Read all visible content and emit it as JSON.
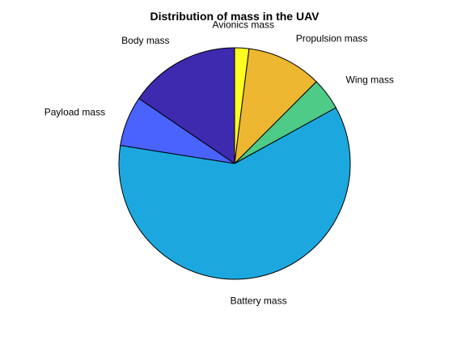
{
  "chart_data": {
    "type": "pie",
    "title": "Distribution of mass in the UAV",
    "start_angle_deg": 90,
    "direction": "clockwise",
    "slices": [
      {
        "label": "Avionics mass",
        "value": 2,
        "color": "#FFFF21"
      },
      {
        "label": "Propulsion mass",
        "value": 10.5,
        "color": "#EDB731"
      },
      {
        "label": "Wing mass",
        "value": 4.5,
        "color": "#4DCB87"
      },
      {
        "label": "Battery mass",
        "value": 60.5,
        "color": "#1CA8DF"
      },
      {
        "label": "Payload mass",
        "value": 7,
        "color": "#4A62FE"
      },
      {
        "label": "Body mass",
        "value": 15.5,
        "color": "#3D2AAF"
      }
    ]
  }
}
